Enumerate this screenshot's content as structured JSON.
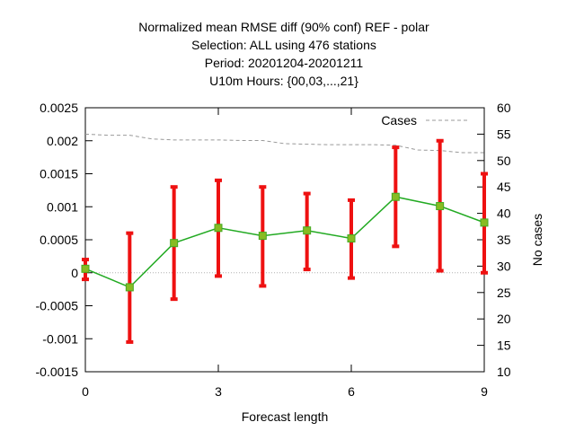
{
  "chart_data": {
    "type": "line",
    "title_lines": [
      "Normalized mean RMSE diff (90% conf) REF - polar",
      "Selection: ALL using   476 stations",
      "Period: 20201204-20201211",
      "U10m   Hours: {00,03,...,21}"
    ],
    "xlabel": "Forecast length",
    "y2label": "No cases",
    "xlim": [
      0,
      9
    ],
    "ylim": [
      -0.0015,
      0.0025
    ],
    "y2lim": [
      10,
      60
    ],
    "x_ticks": [
      0,
      3,
      6,
      9
    ],
    "x_tick_labels": [
      "0",
      "3",
      "6",
      "9"
    ],
    "y_ticks": [
      -0.0015,
      -0.001,
      -0.0005,
      0,
      0.0005,
      0.001,
      0.0015,
      0.002,
      0.0025
    ],
    "y_tick_labels": [
      "-0.0015",
      "-0.001",
      "-0.0005",
      "0",
      "0.0005",
      "0.001",
      "0.0015",
      "0.002",
      "0.0025"
    ],
    "y2_ticks": [
      10,
      15,
      20,
      25,
      30,
      35,
      40,
      45,
      50,
      55,
      60
    ],
    "y2_tick_labels": [
      "10",
      "15",
      "20",
      "25",
      "30",
      "35",
      "40",
      "45",
      "50",
      "55",
      "60"
    ],
    "grid": "horizontal at y=0",
    "legend": {
      "position": "top-right",
      "entries": [
        "Cases"
      ]
    },
    "series": [
      {
        "color": "#22aa22",
        "x": [
          0,
          1,
          2,
          3,
          4,
          5,
          6,
          7,
          8,
          9
        ],
        "y": [
          6e-05,
          -0.00022,
          0.00045,
          0.00068,
          0.00056,
          0.00064,
          0.00052,
          0.00115,
          0.00101,
          0.00076
        ],
        "err_low": [
          -0.0001,
          -0.00105,
          -0.0004,
          -5e-05,
          -0.0002,
          5e-05,
          -8e-05,
          0.0004,
          3e-05,
          0.0
        ],
        "err_high": [
          0.0002,
          0.0006,
          0.0013,
          0.0014,
          0.0013,
          0.0012,
          0.0011,
          0.0019,
          0.002,
          0.0015
        ],
        "err_color": "#ee1111"
      },
      {
        "name": "Cases",
        "axis": "y2",
        "color": "#999999",
        "dashed": true,
        "x": [
          0,
          0.5,
          1,
          1.5,
          2,
          2.5,
          3,
          3.5,
          4,
          4.5,
          5,
          5.5,
          6,
          6.5,
          7,
          7.5,
          8,
          8.5,
          9
        ],
        "y": [
          55,
          54.8,
          54.8,
          54.1,
          53.9,
          53.9,
          53.9,
          53.8,
          53.8,
          53.2,
          53.1,
          53.0,
          53.0,
          53.0,
          52.9,
          52.0,
          51.9,
          51.5,
          51.5
        ]
      }
    ]
  }
}
